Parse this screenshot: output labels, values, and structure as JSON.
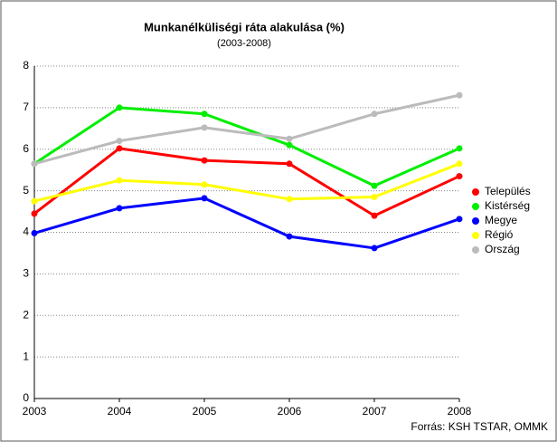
{
  "chart_data": {
    "type": "line",
    "title": "Munkanélküliségi ráta alakulása (%)",
    "subtitle": "(2003-2008)",
    "source": "Forrás: KSH TSTAR, OMMK",
    "categories": [
      "2003",
      "2004",
      "2005",
      "2006",
      "2007",
      "2008"
    ],
    "series": [
      {
        "name": "Település",
        "color": "#ff0000",
        "values": [
          4.45,
          6.02,
          5.73,
          5.65,
          4.4,
          5.35
        ]
      },
      {
        "name": "Kistérség",
        "color": "#00ee00",
        "values": [
          5.65,
          7.0,
          6.85,
          6.1,
          5.12,
          6.02
        ]
      },
      {
        "name": "Megye",
        "color": "#0000ff",
        "values": [
          3.98,
          4.58,
          4.82,
          3.9,
          3.62,
          4.32
        ]
      },
      {
        "name": "Régió",
        "color": "#ffff00",
        "values": [
          4.75,
          5.25,
          5.15,
          4.8,
          4.85,
          5.65
        ]
      },
      {
        "name": "Ország",
        "color": "#bbbbbb",
        "values": [
          5.65,
          6.2,
          6.52,
          6.25,
          6.85,
          7.3
        ]
      }
    ],
    "ylim": [
      0,
      8
    ],
    "yticks": [
      0,
      1,
      2,
      3,
      4,
      5,
      6,
      7,
      8
    ],
    "grid": true,
    "legend": "right"
  }
}
